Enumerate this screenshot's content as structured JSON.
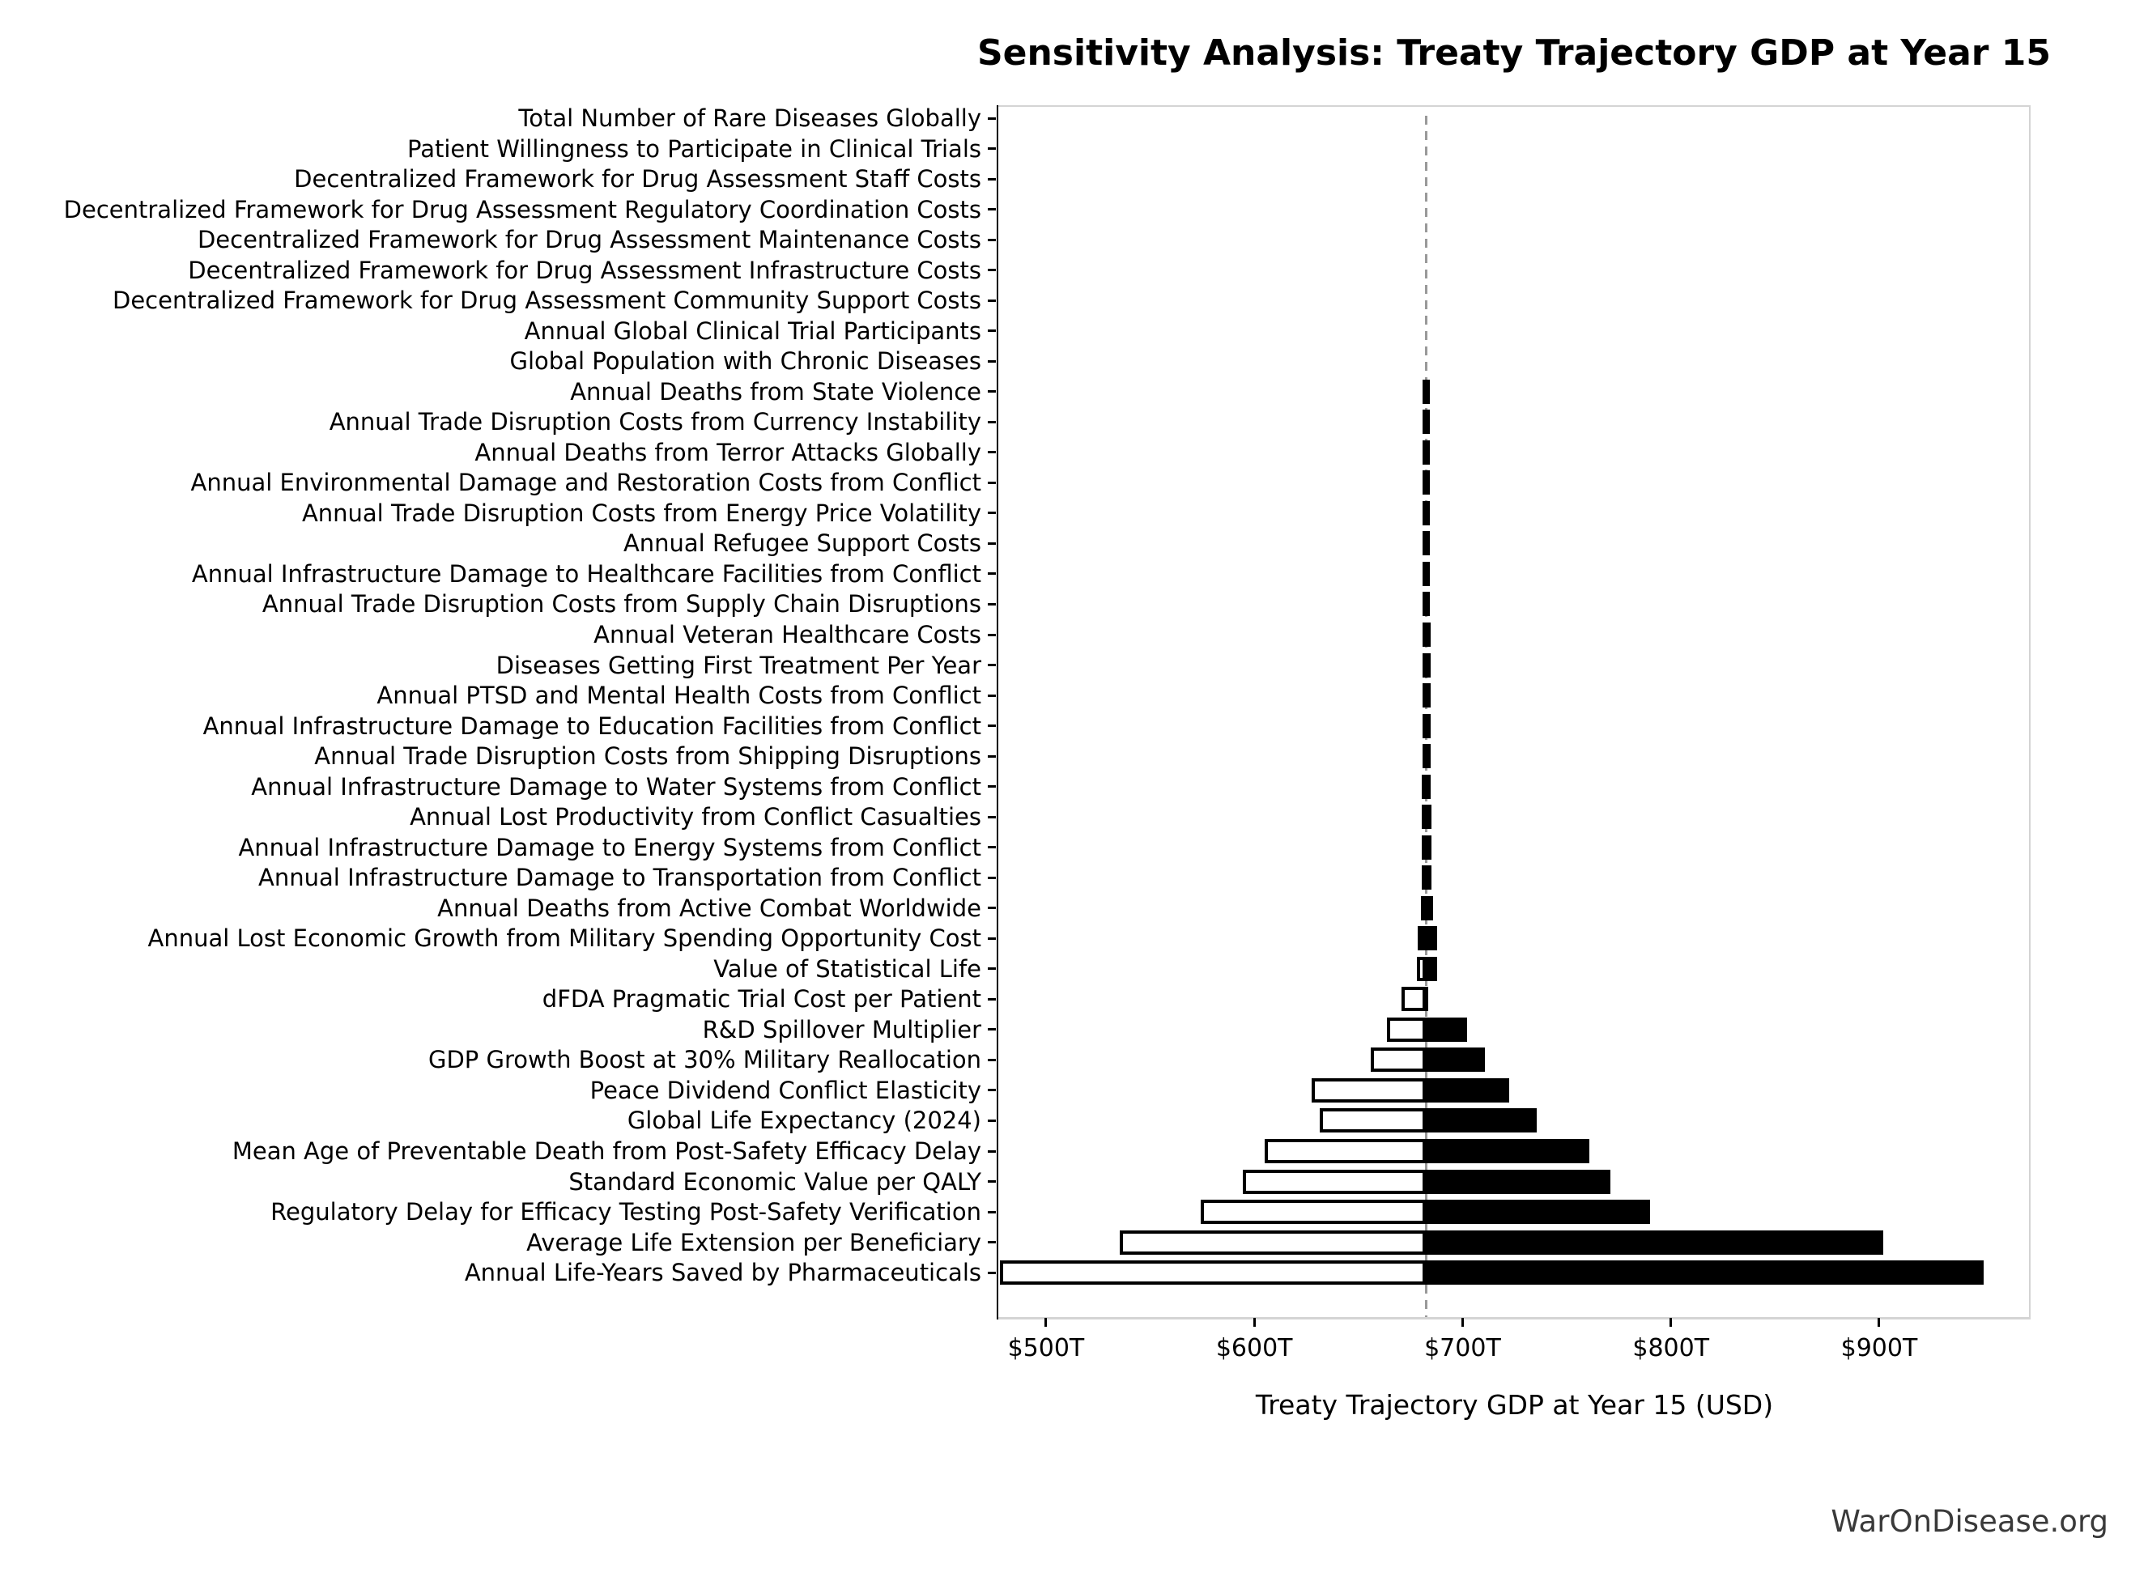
{
  "watermark": "WarOnDisease.org",
  "chart_data": {
    "type": "bar",
    "subtype": "tornado-sensitivity",
    "title": "Sensitivity Analysis: Treaty Trajectory GDP at Year 15",
    "xlabel": "Treaty Trajectory GDP at Year 15 (USD)",
    "unit": "trillions of USD",
    "baseline_value": 682.4,
    "x_axis": {
      "min": 477.1,
      "max": 972.7,
      "tick_values": [
        500,
        600,
        700,
        800,
        900
      ],
      "tick_labels": [
        "$500T",
        "$600T",
        "$700T",
        "$800T",
        "$900T"
      ],
      "grid": false
    },
    "colors": {
      "low_fill": "#ffffff",
      "high_fill": "#000000",
      "bar_edge": "#000000",
      "baseline_dash": "#999999",
      "spine_light": "#d4d4d4",
      "spine_dark": "#000000",
      "watermark": "#3a3a3a"
    },
    "rows": [
      {
        "label": "Total Number of Rare Diseases Globally",
        "low": 682.4,
        "high": 682.4
      },
      {
        "label": "Patient Willingness to Participate in Clinical Trials",
        "low": 682.4,
        "high": 682.4
      },
      {
        "label": "Decentralized Framework for Drug Assessment Staff Costs",
        "low": 682.4,
        "high": 682.4
      },
      {
        "label": "Decentralized Framework for Drug Assessment Regulatory Coordination Costs",
        "low": 682.4,
        "high": 682.4
      },
      {
        "label": "Decentralized Framework for Drug Assessment Maintenance Costs",
        "low": 682.4,
        "high": 682.4
      },
      {
        "label": "Decentralized Framework for Drug Assessment Infrastructure Costs",
        "low": 682.4,
        "high": 682.4
      },
      {
        "label": "Decentralized Framework for Drug Assessment Community Support Costs",
        "low": 682.4,
        "high": 682.4
      },
      {
        "label": "Annual Global Clinical Trial Participants",
        "low": 682.4,
        "high": 682.4
      },
      {
        "label": "Global Population with Chronic Diseases",
        "low": 682.4,
        "high": 682.4
      },
      {
        "label": "Annual Deaths from State Violence",
        "low": 680.9,
        "high": 684.2
      },
      {
        "label": "Annual Trade Disruption Costs from Currency Instability",
        "low": 680.9,
        "high": 684.2
      },
      {
        "label": "Annual Deaths from Terror Attacks Globally",
        "low": 680.9,
        "high": 684.3
      },
      {
        "label": "Annual Environmental Damage and Restoration Costs from Conflict",
        "low": 680.8,
        "high": 684.3
      },
      {
        "label": "Annual Trade Disruption Costs from Energy Price Volatility",
        "low": 680.8,
        "high": 684.3
      },
      {
        "label": "Annual Refugee Support Costs",
        "low": 680.8,
        "high": 684.4
      },
      {
        "label": "Annual Infrastructure Damage to Healthcare Facilities from Conflict",
        "low": 680.8,
        "high": 684.4
      },
      {
        "label": "Annual Trade Disruption Costs from Supply Chain Disruptions",
        "low": 680.7,
        "high": 684.4
      },
      {
        "label": "Annual Veteran Healthcare Costs",
        "low": 680.7,
        "high": 684.5
      },
      {
        "label": "Diseases Getting First Treatment Per Year",
        "low": 680.7,
        "high": 684.5
      },
      {
        "label": "Annual PTSD and Mental Health Costs from Conflict",
        "low": 680.6,
        "high": 684.6
      },
      {
        "label": "Annual Infrastructure Damage to Education Facilities from Conflict",
        "low": 680.6,
        "high": 684.6
      },
      {
        "label": "Annual Trade Disruption Costs from Shipping Disruptions",
        "low": 680.6,
        "high": 684.7
      },
      {
        "label": "Annual Infrastructure Damage to Water Systems from Conflict",
        "low": 680.5,
        "high": 684.8
      },
      {
        "label": "Annual Lost Productivity from Conflict Casualties",
        "low": 680.4,
        "high": 684.9
      },
      {
        "label": "Annual Infrastructure Damage to Energy Systems from Conflict",
        "low": 680.3,
        "high": 685.0
      },
      {
        "label": "Annual Infrastructure Damage to Transportation from Conflict",
        "low": 680.2,
        "high": 685.2
      },
      {
        "label": "Annual Deaths from Active Combat Worldwide",
        "low": 680.0,
        "high": 685.9
      },
      {
        "label": "Annual Lost Economic Growth from Military Spending Opportunity Cost",
        "low": 678.3,
        "high": 687.6
      },
      {
        "label": "Value of Statistical Life",
        "low": 678.0,
        "high": 687.7
      },
      {
        "label": "dFDA Pragmatic Trial Cost per Patient",
        "low": 670.5,
        "high": 683.6
      },
      {
        "label": "R&D Spillover Multiplier",
        "low": 663.5,
        "high": 702.3
      },
      {
        "label": "GDP Growth Boost at 30% Military Reallocation",
        "low": 656.0,
        "high": 710.7
      },
      {
        "label": "Peace Dividend Conflict Elasticity",
        "low": 627.5,
        "high": 722.4
      },
      {
        "label": "Global Life Expectancy (2024)",
        "low": 631.6,
        "high": 735.7
      },
      {
        "label": "Mean Age of Preventable Death from Post-Safety Efficacy Delay",
        "low": 604.9,
        "high": 761.0
      },
      {
        "label": "Standard Economic Value per QALY",
        "low": 594.5,
        "high": 771.0
      },
      {
        "label": "Regulatory Delay for Efficacy Testing Post-Safety Verification",
        "low": 574.4,
        "high": 790.0
      },
      {
        "label": "Average Life Extension per Beneficiary",
        "low": 535.3,
        "high": 901.9
      },
      {
        "label": "Annual Life-Years Saved by Pharmaceuticals",
        "low": 477.8,
        "high": 950.2
      }
    ]
  }
}
